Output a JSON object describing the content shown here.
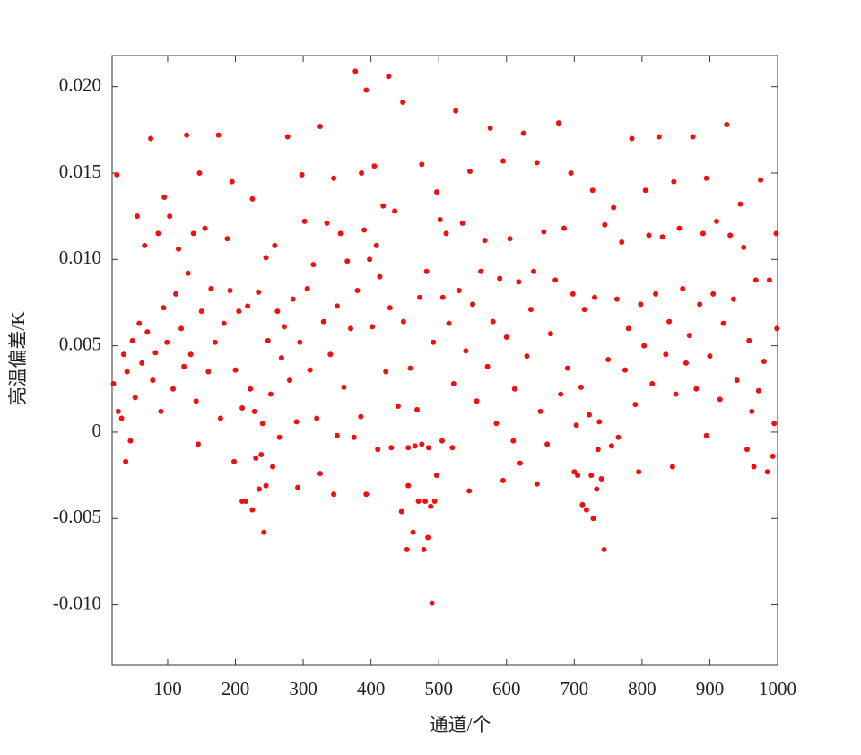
{
  "chart_data": {
    "type": "scatter",
    "xlabel": "通道/个",
    "ylabel": "亮温偏差/K",
    "xlim": [
      18,
      1000
    ],
    "ylim": [
      -0.0135,
      0.0218
    ],
    "xticks": [
      100,
      200,
      300,
      400,
      500,
      600,
      700,
      800,
      900,
      1000
    ],
    "yticks": [
      {
        "value": 0.02,
        "label": "0.020"
      },
      0.015,
      {
        "value": 0.01,
        "label": "0.010"
      },
      0.005,
      0,
      -0.005,
      {
        "value": -0.01,
        "label": "-0.010"
      }
    ],
    "color": "#ee1111",
    "x": [
      25,
      75,
      128,
      175,
      225,
      277,
      325,
      377,
      393,
      426,
      447,
      475,
      525,
      576,
      625,
      677,
      695,
      727,
      785,
      825,
      875,
      925,
      975,
      195,
      147,
      95,
      55,
      245,
      298,
      345,
      386,
      405,
      497,
      546,
      595,
      645,
      745,
      805,
      847,
      895,
      945,
      998,
      490,
      453,
      478,
      484,
      744,
      728,
      242,
      225,
      210,
      215,
      235,
      245,
      292,
      325,
      345,
      393,
      445,
      462,
      455,
      470,
      480,
      488,
      494,
      497,
      485,
      475,
      465,
      455,
      700,
      712,
      718,
      733,
      740,
      705,
      725,
      735,
      755,
      795,
      845,
      955,
      965,
      985,
      993,
      645,
      620,
      545,
      595,
      38,
      45,
      145,
      198,
      230,
      238,
      255,
      265,
      520,
      410,
      430,
      505,
      895,
      765,
      660,
      610,
      375,
      350,
      20,
      27,
      32,
      35,
      40,
      48,
      52,
      58,
      62,
      66,
      70,
      78,
      82,
      86,
      90,
      94,
      99,
      103,
      108,
      112,
      116,
      120,
      124,
      130,
      134,
      138,
      142,
      150,
      155,
      160,
      164,
      170,
      178,
      183,
      188,
      192,
      200,
      205,
      210,
      218,
      222,
      228,
      234,
      240,
      248,
      252,
      258,
      262,
      268,
      272,
      280,
      285,
      290,
      295,
      302,
      306,
      310,
      315,
      320,
      330,
      335,
      340,
      350,
      355,
      360,
      365,
      370,
      380,
      385,
      390,
      398,
      402,
      408,
      413,
      418,
      422,
      428,
      435,
      440,
      448,
      458,
      468,
      472,
      482,
      492,
      502,
      506,
      511,
      515,
      522,
      530,
      535,
      540,
      550,
      556,
      562,
      568,
      572,
      580,
      585,
      590,
      600,
      605,
      612,
      618,
      630,
      636,
      640,
      650,
      655,
      665,
      672,
      680,
      685,
      690,
      698,
      703,
      710,
      715,
      722,
      730,
      737,
      750,
      758,
      763,
      770,
      775,
      780,
      790,
      798,
      803,
      810,
      815,
      820,
      830,
      835,
      840,
      850,
      855,
      860,
      865,
      870,
      880,
      885,
      890,
      900,
      905,
      910,
      915,
      920,
      930,
      935,
      940,
      950,
      958,
      962,
      968,
      972,
      980,
      988,
      995,
      999
    ],
    "values": [
      0.0149,
      0.017,
      0.0172,
      0.0172,
      0.0135,
      0.0171,
      0.0177,
      0.0209,
      0.0198,
      0.0206,
      0.0191,
      0.0155,
      0.0186,
      0.0176,
      0.0173,
      0.0179,
      0.015,
      0.014,
      0.017,
      0.0171,
      0.0171,
      0.0178,
      0.0146,
      0.0145,
      0.015,
      0.0136,
      0.0125,
      0.0101,
      0.0149,
      0.0147,
      0.015,
      0.0154,
      0.0139,
      0.0151,
      0.0157,
      0.0156,
      0.012,
      0.014,
      0.0145,
      0.0147,
      0.0132,
      0.0115,
      -0.0099,
      -0.0068,
      -0.0068,
      -0.0061,
      -0.0068,
      -0.005,
      -0.0058,
      -0.0045,
      -0.004,
      -0.004,
      -0.0033,
      -0.0031,
      -0.0032,
      -0.0024,
      -0.0036,
      -0.0036,
      -0.0046,
      -0.0058,
      -0.0031,
      -0.004,
      -0.004,
      -0.0043,
      -0.004,
      -0.0025,
      -0.0009,
      -0.0007,
      -0.0008,
      -0.0009,
      -0.0023,
      -0.0042,
      -0.0045,
      -0.0033,
      -0.0027,
      -0.0025,
      -0.0025,
      -0.001,
      -0.0008,
      -0.0023,
      -0.002,
      -0.001,
      -0.002,
      -0.0023,
      -0.0014,
      -0.003,
      -0.0018,
      -0.0034,
      -0.0028,
      -0.0017,
      -0.0005,
      -0.0007,
      -0.0017,
      -0.0015,
      -0.0013,
      -0.002,
      -0.0003,
      -0.0009,
      -0.001,
      -0.0009,
      -0.0005,
      -0.0002,
      -0.0003,
      -0.0007,
      -0.0005,
      -0.0003,
      -0.0002,
      0.0028,
      0.0012,
      0.0008,
      0.0045,
      0.0035,
      0.0053,
      0.002,
      0.0063,
      0.004,
      0.0108,
      0.0058,
      0.003,
      0.0046,
      0.0115,
      0.0012,
      0.0072,
      0.0052,
      0.0125,
      0.0025,
      0.008,
      0.0106,
      0.006,
      0.0038,
      0.0092,
      0.0045,
      0.0115,
      0.0018,
      0.007,
      0.0118,
      0.0035,
      0.0083,
      0.0052,
      0.0008,
      0.0063,
      0.0112,
      0.0082,
      0.0036,
      0.007,
      0.0014,
      0.0073,
      0.0025,
      0.0012,
      0.0081,
      0.0005,
      0.0053,
      0.0022,
      0.0108,
      0.007,
      0.0043,
      0.0061,
      0.003,
      0.0077,
      0.0006,
      0.0052,
      0.0122,
      0.0083,
      0.0036,
      0.0097,
      0.0008,
      0.0064,
      0.0121,
      0.0045,
      0.0073,
      0.0115,
      0.0026,
      0.0099,
      0.006,
      0.0082,
      0.0009,
      0.0117,
      0.01,
      0.0061,
      0.0108,
      0.009,
      0.0131,
      0.0035,
      0.0072,
      0.0128,
      0.0015,
      0.0064,
      0.0037,
      0.0013,
      0.0078,
      0.0093,
      0.0052,
      0.0123,
      0.0078,
      0.0115,
      0.0063,
      0.0028,
      0.0082,
      0.0121,
      0.0047,
      0.0074,
      0.0018,
      0.0093,
      0.0111,
      0.0038,
      0.0064,
      0.0005,
      0.0089,
      0.0055,
      0.0112,
      0.0025,
      0.0087,
      0.0044,
      0.0071,
      0.0093,
      0.0012,
      0.0116,
      0.0057,
      0.0088,
      0.0022,
      0.0118,
      0.0037,
      0.008,
      0.0004,
      0.0026,
      0.0071,
      0.001,
      0.0078,
      0.0006,
      0.0042,
      0.013,
      0.0077,
      0.011,
      0.0036,
      0.006,
      0.0016,
      0.0074,
      0.005,
      0.0114,
      0.0028,
      0.008,
      0.0113,
      0.0045,
      0.0064,
      0.0022,
      0.0118,
      0.0083,
      0.004,
      0.0056,
      0.0025,
      0.0074,
      0.0115,
      0.0044,
      0.008,
      0.0122,
      0.0019,
      0.0063,
      0.0114,
      0.0077,
      0.003,
      0.0107,
      0.0053,
      0.0012,
      0.0088,
      0.0024,
      0.0041,
      0.0088,
      0.0005,
      0.006
    ]
  }
}
